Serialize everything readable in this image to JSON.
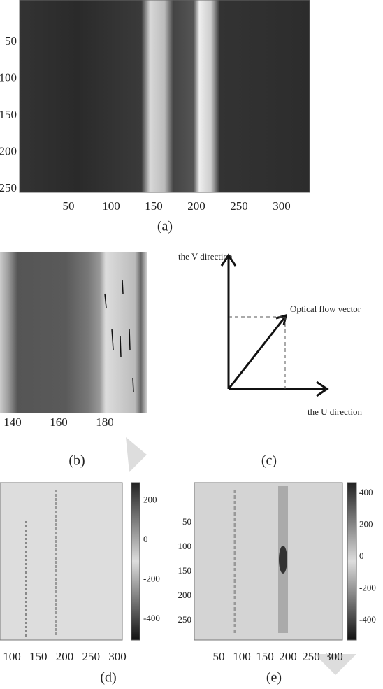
{
  "panels": [
    {
      "caption": "(a)",
      "xticks": [
        50,
        100,
        150,
        200,
        250,
        300
      ],
      "yticks": [
        50,
        100,
        150,
        200,
        250
      ]
    },
    {
      "caption": "(b)",
      "xticks": [
        140,
        160,
        180
      ]
    },
    {
      "caption": "(c)",
      "v_label": "the V direction",
      "vector_label": "Optical flow vector",
      "u_label": "the U direction"
    },
    {
      "caption": "(d)",
      "xticks": [
        100,
        150,
        200,
        250,
        300
      ],
      "colorbar_ticks": [
        200,
        0,
        -200,
        -400
      ]
    },
    {
      "caption": "(e)",
      "xticks": [
        50,
        100,
        150,
        200,
        250,
        300
      ],
      "yticks": [
        50,
        100,
        150,
        200,
        250
      ],
      "colorbar_ticks": [
        400,
        200,
        0,
        -200,
        -400
      ]
    }
  ]
}
